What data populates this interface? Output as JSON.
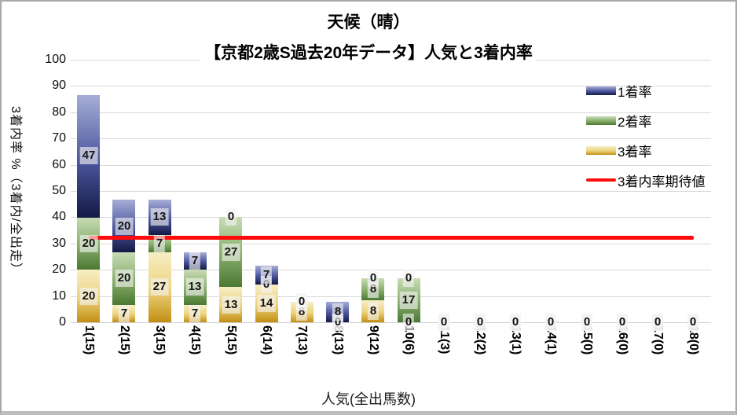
{
  "chart_data": {
    "type": "bar",
    "stacked": true,
    "title": "天候（晴）",
    "subtitle": "【京都2歳S過去20年データ】人気と3着内率",
    "xlabel": "人気(全出馬数)",
    "ylabel": "3着内率 %（3着内/全出走）",
    "ylim": [
      0,
      100
    ],
    "ytick_interval": 10,
    "yticks": [
      "0",
      "10",
      "20",
      "30",
      "40",
      "50",
      "60",
      "70",
      "80",
      "90",
      "100"
    ],
    "grid": "horizontal",
    "legend_position": "right-top",
    "categories": [
      "1(15)",
      "2(15)",
      "3(15)",
      "4(15)",
      "5(15)",
      "6(14)",
      "7(13)",
      "8(13)",
      "9(12)",
      "10(6)",
      "11(3)",
      "12(2)",
      "13(1)",
      "14(1)",
      "15(0)",
      "16(0)",
      "17(0)",
      "18(0)"
    ],
    "series": [
      {
        "id": "third",
        "name": "3着率",
        "values": [
          20,
          6.67,
          26.67,
          6.67,
          13.33,
          14.29,
          7.69,
          0,
          8.33,
          0,
          0,
          0,
          0,
          0,
          0,
          0,
          0,
          0
        ],
        "labels": [
          "20",
          "7",
          "27",
          "7",
          "13",
          "14",
          "8",
          "0",
          "8",
          "0",
          "0",
          "0",
          "0",
          "0",
          "0",
          "0",
          "0",
          "0"
        ],
        "gradient": [
          "#f7eec6",
          "#ecd27b",
          "#c28e12"
        ]
      },
      {
        "id": "second",
        "name": "2着率",
        "values": [
          20,
          20,
          6.67,
          13.33,
          26.67,
          0,
          0,
          0,
          8.33,
          16.67,
          0,
          0,
          0,
          0,
          0,
          0,
          0,
          0
        ],
        "labels": [
          "20",
          "20",
          "7",
          "13",
          "27",
          "0",
          "0",
          "0",
          "8",
          "17",
          "0",
          "0",
          "0",
          "0",
          "0",
          "0",
          "0",
          "0"
        ],
        "gradient": [
          "#c8dcb6",
          "#85ad68",
          "#4b7834"
        ]
      },
      {
        "id": "first",
        "name": "1着率",
        "values": [
          46.67,
          20,
          13.33,
          6.67,
          0,
          7.14,
          0,
          7.69,
          0,
          0,
          0,
          0,
          0,
          0,
          0,
          0,
          0,
          0
        ],
        "labels": [
          "47",
          "20",
          "13",
          "7",
          "0",
          "7",
          "0",
          "8",
          "0",
          "0",
          "0",
          "0",
          "0",
          "0",
          "0",
          "0",
          "0",
          "0"
        ],
        "gradient": [
          "#a6aed6",
          "#4a549c",
          "#141a45"
        ]
      }
    ],
    "expected_line": {
      "name": "3着内率期待値",
      "value": 32.3,
      "color": "#fe0c0c"
    },
    "legend": [
      {
        "label": "1着率",
        "swatch": "first"
      },
      {
        "label": "2着率",
        "swatch": "second"
      },
      {
        "label": "3着率",
        "swatch": "third"
      },
      {
        "label": "3着内率期待値",
        "swatch": "line"
      }
    ]
  }
}
